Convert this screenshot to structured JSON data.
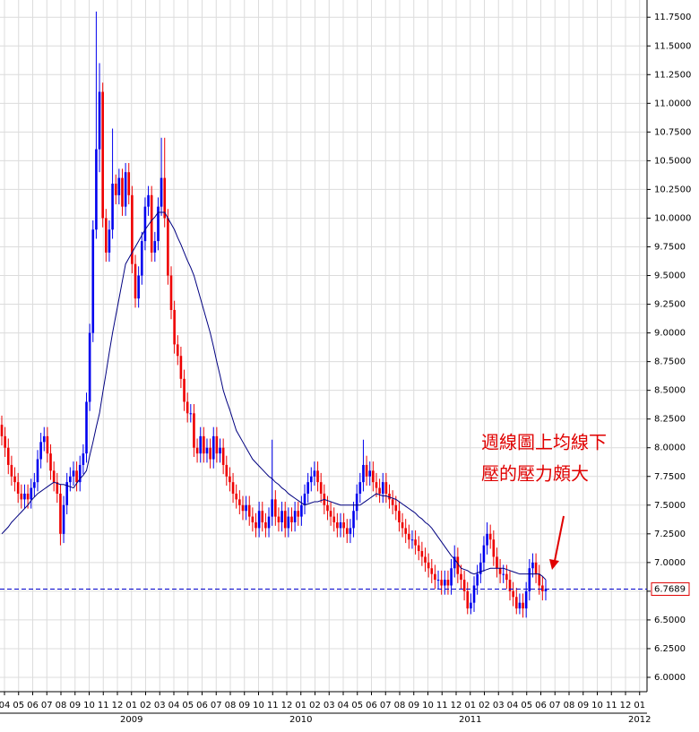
{
  "chart_data": {
    "type": "candlestick",
    "annotation": [
      "週線圖上均線下",
      "壓的壓力頗大"
    ],
    "up_color": "#0000ee",
    "down_color": "#ee0000",
    "ma_color": "#000080",
    "annotation_color": "#e00000",
    "last_price": {
      "value": 6.7689,
      "label": "6.7689"
    },
    "ylim": [
      5.875,
      11.9
    ],
    "yticks": [
      {
        "value": 6.0,
        "label": "6.0000"
      },
      {
        "value": 6.25,
        "label": "6.2500"
      },
      {
        "value": 6.5,
        "label": "6.5000"
      },
      {
        "value": 6.75,
        "label": "6.7500"
      },
      {
        "value": 7.0,
        "label": "7.0000"
      },
      {
        "value": 7.25,
        "label": "7.2500"
      },
      {
        "value": 7.5,
        "label": "7.5000"
      },
      {
        "value": 7.75,
        "label": "7.7500"
      },
      {
        "value": 8.0,
        "label": "8.0000"
      },
      {
        "value": 8.25,
        "label": "8.2500"
      },
      {
        "value": 8.5,
        "label": "8.5000"
      },
      {
        "value": 8.75,
        "label": "8.7500"
      },
      {
        "value": 9.0,
        "label": "9.0000"
      },
      {
        "value": 9.25,
        "label": "9.2500"
      },
      {
        "value": 9.5,
        "label": "9.5000"
      },
      {
        "value": 9.75,
        "label": "9.7500"
      },
      {
        "value": 10.0,
        "label": "10.0000"
      },
      {
        "value": 10.25,
        "label": "10.2500"
      },
      {
        "value": 10.5,
        "label": "10.5000"
      },
      {
        "value": 10.75,
        "label": "10.7500"
      },
      {
        "value": 11.0,
        "label": "11.0000"
      },
      {
        "value": 11.25,
        "label": "11.2500"
      },
      {
        "value": 11.5,
        "label": "11.5000"
      },
      {
        "value": 11.75,
        "label": "11.7500"
      }
    ],
    "grid": true,
    "x_labels": [
      "04",
      "05",
      "06",
      "07",
      "08",
      "09",
      "10",
      "11",
      "12",
      "01",
      "02",
      "03",
      "04",
      "05",
      "06",
      "07",
      "08",
      "09",
      "10",
      "11",
      "12",
      "01",
      "02",
      "03",
      "04",
      "05",
      "06",
      "07",
      "08",
      "09",
      "10",
      "11",
      "12",
      "01",
      "02",
      "03",
      "04",
      "05",
      "06",
      "07",
      "08",
      "09",
      "10",
      "11",
      "12",
      "01"
    ],
    "x_years": [
      null,
      null,
      null,
      null,
      null,
      null,
      null,
      null,
      null,
      "2009",
      null,
      null,
      null,
      null,
      null,
      null,
      null,
      null,
      null,
      null,
      null,
      "2010",
      null,
      null,
      null,
      null,
      null,
      null,
      null,
      null,
      null,
      null,
      null,
      "2011",
      null,
      null,
      null,
      null,
      null,
      null,
      null,
      null,
      null,
      null,
      null,
      "2012"
    ],
    "candles": [
      [
        8.2,
        8.28,
        8.02,
        8.1
      ],
      [
        8.1,
        8.18,
        7.92,
        8.0
      ],
      [
        8.0,
        8.08,
        7.77,
        7.85
      ],
      [
        7.85,
        7.93,
        7.67,
        7.75
      ],
      [
        7.75,
        7.83,
        7.62,
        7.7
      ],
      [
        7.7,
        7.78,
        7.52,
        7.6
      ],
      [
        7.6,
        7.68,
        7.47,
        7.55
      ],
      [
        7.55,
        7.68,
        7.47,
        7.6
      ],
      [
        7.6,
        7.68,
        7.47,
        7.55
      ],
      [
        7.55,
        7.73,
        7.47,
        7.65
      ],
      [
        7.65,
        7.78,
        7.57,
        7.7
      ],
      [
        7.7,
        7.98,
        7.62,
        7.9
      ],
      [
        7.9,
        8.13,
        7.82,
        8.05
      ],
      [
        8.05,
        8.18,
        7.97,
        8.1
      ],
      [
        8.1,
        8.18,
        7.87,
        7.95
      ],
      [
        7.95,
        8.03,
        7.72,
        7.8
      ],
      [
        7.8,
        7.88,
        7.62,
        7.7
      ],
      [
        7.7,
        7.78,
        7.52,
        7.6
      ],
      [
        7.6,
        7.68,
        7.15,
        7.25
      ],
      [
        7.25,
        7.58,
        7.17,
        7.5
      ],
      [
        7.5,
        7.78,
        7.42,
        7.7
      ],
      [
        7.7,
        7.83,
        7.62,
        7.75
      ],
      [
        7.75,
        7.88,
        7.67,
        7.8
      ],
      [
        7.8,
        7.88,
        7.62,
        7.7
      ],
      [
        7.7,
        7.93,
        7.62,
        7.85
      ],
      [
        7.85,
        8.03,
        7.77,
        7.95
      ],
      [
        7.95,
        8.48,
        7.87,
        8.4
      ],
      [
        8.4,
        9.08,
        8.32,
        9.0
      ],
      [
        9.0,
        9.98,
        8.92,
        9.9
      ],
      [
        9.9,
        11.8,
        9.82,
        10.6
      ],
      [
        10.6,
        11.35,
        10.4,
        11.1
      ],
      [
        11.1,
        11.18,
        9.92,
        10.0
      ],
      [
        10.0,
        10.08,
        9.62,
        9.7
      ],
      [
        9.7,
        9.98,
        9.62,
        9.9
      ],
      [
        9.9,
        10.78,
        9.82,
        10.3
      ],
      [
        10.3,
        10.38,
        10.12,
        10.2
      ],
      [
        10.2,
        10.43,
        10.12,
        10.35
      ],
      [
        10.35,
        10.43,
        10.02,
        10.1
      ],
      [
        10.1,
        10.48,
        10.02,
        10.4
      ],
      [
        10.4,
        10.48,
        10.12,
        10.2
      ],
      [
        10.2,
        10.28,
        9.52,
        9.6
      ],
      [
        9.6,
        9.68,
        9.22,
        9.3
      ],
      [
        9.3,
        9.58,
        9.22,
        9.5
      ],
      [
        9.5,
        9.88,
        9.42,
        9.8
      ],
      [
        9.8,
        10.18,
        9.72,
        10.1
      ],
      [
        10.1,
        10.28,
        10.02,
        10.2
      ],
      [
        10.2,
        10.28,
        9.62,
        9.7
      ],
      [
        9.7,
        9.88,
        9.62,
        9.8
      ],
      [
        9.8,
        10.18,
        9.72,
        10.1
      ],
      [
        10.1,
        10.7,
        10.02,
        10.35
      ],
      [
        10.35,
        10.7,
        9.92,
        10.0
      ],
      [
        10.0,
        10.08,
        9.42,
        9.5
      ],
      [
        9.5,
        9.58,
        9.12,
        9.2
      ],
      [
        9.2,
        9.28,
        8.82,
        8.9
      ],
      [
        8.9,
        8.98,
        8.72,
        8.8
      ],
      [
        8.8,
        8.88,
        8.52,
        8.6
      ],
      [
        8.6,
        8.68,
        8.32,
        8.4
      ],
      [
        8.4,
        8.48,
        8.22,
        8.3
      ],
      [
        8.3,
        8.38,
        8.22,
        8.3
      ],
      [
        8.3,
        8.38,
        7.92,
        8.0
      ],
      [
        8.0,
        8.08,
        7.87,
        7.95
      ],
      [
        7.95,
        8.18,
        7.87,
        8.1
      ],
      [
        8.1,
        8.18,
        7.87,
        7.95
      ],
      [
        7.95,
        8.08,
        7.87,
        8.0
      ],
      [
        8.0,
        8.08,
        7.82,
        7.9
      ],
      [
        7.9,
        8.18,
        7.82,
        8.1
      ],
      [
        8.1,
        8.18,
        7.87,
        7.95
      ],
      [
        7.95,
        8.08,
        7.87,
        8.0
      ],
      [
        8.0,
        8.08,
        7.77,
        7.85
      ],
      [
        7.85,
        7.93,
        7.67,
        7.75
      ],
      [
        7.75,
        7.83,
        7.62,
        7.7
      ],
      [
        7.7,
        7.78,
        7.52,
        7.6
      ],
      [
        7.6,
        7.68,
        7.47,
        7.55
      ],
      [
        7.55,
        7.63,
        7.42,
        7.5
      ],
      [
        7.5,
        7.58,
        7.37,
        7.45
      ],
      [
        7.45,
        7.58,
        7.37,
        7.5
      ],
      [
        7.5,
        7.58,
        7.32,
        7.4
      ],
      [
        7.4,
        7.48,
        7.27,
        7.35
      ],
      [
        7.35,
        7.43,
        7.22,
        7.3
      ],
      [
        7.3,
        7.53,
        7.22,
        7.45
      ],
      [
        7.45,
        7.53,
        7.27,
        7.35
      ],
      [
        7.35,
        7.43,
        7.22,
        7.3
      ],
      [
        7.3,
        7.48,
        7.22,
        7.4
      ],
      [
        7.4,
        8.07,
        7.32,
        7.55
      ],
      [
        7.55,
        7.63,
        7.32,
        7.4
      ],
      [
        7.4,
        7.48,
        7.27,
        7.35
      ],
      [
        7.35,
        7.53,
        7.27,
        7.45
      ],
      [
        7.45,
        7.53,
        7.22,
        7.3
      ],
      [
        7.3,
        7.48,
        7.22,
        7.4
      ],
      [
        7.4,
        7.48,
        7.27,
        7.35
      ],
      [
        7.35,
        7.53,
        7.27,
        7.45
      ],
      [
        7.45,
        7.53,
        7.32,
        7.4
      ],
      [
        7.4,
        7.58,
        7.32,
        7.5
      ],
      [
        7.5,
        7.68,
        7.42,
        7.6
      ],
      [
        7.6,
        7.78,
        7.52,
        7.7
      ],
      [
        7.7,
        7.83,
        7.62,
        7.75
      ],
      [
        7.75,
        7.88,
        7.67,
        7.8
      ],
      [
        7.8,
        7.88,
        7.62,
        7.7
      ],
      [
        7.7,
        7.78,
        7.52,
        7.6
      ],
      [
        7.6,
        7.68,
        7.42,
        7.5
      ],
      [
        7.5,
        7.58,
        7.37,
        7.45
      ],
      [
        7.45,
        7.53,
        7.32,
        7.4
      ],
      [
        7.4,
        7.48,
        7.27,
        7.35
      ],
      [
        7.35,
        7.43,
        7.22,
        7.3
      ],
      [
        7.3,
        7.43,
        7.22,
        7.35
      ],
      [
        7.35,
        7.43,
        7.22,
        7.3
      ],
      [
        7.3,
        7.38,
        7.17,
        7.25
      ],
      [
        7.25,
        7.38,
        7.17,
        7.3
      ],
      [
        7.3,
        7.53,
        7.22,
        7.45
      ],
      [
        7.45,
        7.68,
        7.37,
        7.6
      ],
      [
        7.6,
        7.78,
        7.52,
        7.7
      ],
      [
        7.7,
        8.07,
        7.62,
        7.85
      ],
      [
        7.85,
        7.93,
        7.67,
        7.75
      ],
      [
        7.75,
        7.88,
        7.67,
        7.8
      ],
      [
        7.8,
        7.88,
        7.62,
        7.7
      ],
      [
        7.7,
        7.78,
        7.57,
        7.65
      ],
      [
        7.65,
        7.73,
        7.52,
        7.6
      ],
      [
        7.6,
        7.78,
        7.52,
        7.7
      ],
      [
        7.7,
        7.78,
        7.52,
        7.6
      ],
      [
        7.6,
        7.68,
        7.47,
        7.55
      ],
      [
        7.55,
        7.63,
        7.42,
        7.5
      ],
      [
        7.5,
        7.58,
        7.37,
        7.45
      ],
      [
        7.45,
        7.53,
        7.27,
        7.35
      ],
      [
        7.35,
        7.43,
        7.22,
        7.3
      ],
      [
        7.3,
        7.38,
        7.17,
        7.25
      ],
      [
        7.25,
        7.33,
        7.12,
        7.2
      ],
      [
        7.2,
        7.28,
        7.12,
        7.2
      ],
      [
        7.2,
        7.28,
        7.07,
        7.15
      ],
      [
        7.15,
        7.23,
        7.02,
        7.1
      ],
      [
        7.1,
        7.18,
        6.97,
        7.05
      ],
      [
        7.05,
        7.13,
        6.92,
        7.0
      ],
      [
        7.0,
        7.08,
        6.87,
        6.95
      ],
      [
        6.95,
        7.03,
        6.82,
        6.9
      ],
      [
        6.9,
        6.98,
        6.77,
        6.85
      ],
      [
        6.85,
        6.93,
        6.77,
        6.85
      ],
      [
        6.85,
        6.93,
        6.72,
        6.8
      ],
      [
        6.8,
        6.93,
        6.72,
        6.85
      ],
      [
        6.85,
        6.93,
        6.72,
        6.8
      ],
      [
        6.8,
        7.03,
        6.72,
        6.95
      ],
      [
        6.95,
        7.15,
        6.87,
        7.05
      ],
      [
        7.05,
        7.13,
        6.82,
        6.9
      ],
      [
        6.9,
        6.98,
        6.77,
        6.85
      ],
      [
        6.85,
        6.93,
        6.67,
        6.75
      ],
      [
        6.75,
        6.83,
        6.55,
        6.6
      ],
      [
        6.6,
        6.73,
        6.55,
        6.65
      ],
      [
        6.65,
        6.88,
        6.57,
        6.8
      ],
      [
        6.8,
        6.98,
        6.72,
        6.9
      ],
      [
        6.9,
        7.08,
        6.82,
        7.0
      ],
      [
        7.0,
        7.23,
        6.92,
        7.15
      ],
      [
        7.15,
        7.35,
        7.07,
        7.25
      ],
      [
        7.25,
        7.33,
        7.12,
        7.2
      ],
      [
        7.2,
        7.28,
        6.97,
        7.05
      ],
      [
        7.05,
        7.13,
        6.87,
        6.95
      ],
      [
        6.95,
        7.03,
        6.82,
        6.9
      ],
      [
        6.9,
        6.98,
        6.82,
        6.9
      ],
      [
        6.9,
        6.98,
        6.77,
        6.85
      ],
      [
        6.85,
        6.93,
        6.67,
        6.75
      ],
      [
        6.75,
        6.83,
        6.62,
        6.7
      ],
      [
        6.7,
        6.78,
        6.55,
        6.6
      ],
      [
        6.6,
        6.73,
        6.55,
        6.65
      ],
      [
        6.65,
        6.73,
        6.52,
        6.6
      ],
      [
        6.6,
        6.83,
        6.52,
        6.75
      ],
      [
        6.75,
        7.03,
        6.67,
        6.95
      ],
      [
        6.95,
        7.08,
        6.87,
        7.0
      ],
      [
        7.0,
        7.08,
        6.82,
        6.9
      ],
      [
        6.9,
        6.98,
        6.72,
        6.8
      ],
      [
        6.8,
        6.88,
        6.67,
        6.75
      ],
      [
        6.75,
        6.85,
        6.67,
        6.77
      ]
    ],
    "ma": [
      7.25,
      7.28,
      7.31,
      7.35,
      7.38,
      7.41,
      7.44,
      7.47,
      7.5,
      7.54,
      7.57,
      7.6,
      7.62,
      7.64,
      7.66,
      7.68,
      7.7,
      7.69,
      7.68,
      7.68,
      7.67,
      7.66,
      7.65,
      7.69,
      7.73,
      7.76,
      7.8,
      7.93,
      8.05,
      8.18,
      8.3,
      8.48,
      8.65,
      8.83,
      9.0,
      9.15,
      9.3,
      9.45,
      9.6,
      9.65,
      9.7,
      9.75,
      9.8,
      9.85,
      9.9,
      9.94,
      9.98,
      10.01,
      10.05,
      10.05,
      10.05,
      10.0,
      9.95,
      9.9,
      9.83,
      9.77,
      9.7,
      9.63,
      9.57,
      9.5,
      9.4,
      9.3,
      9.2,
      9.1,
      9.0,
      8.88,
      8.75,
      8.63,
      8.5,
      8.41,
      8.33,
      8.24,
      8.15,
      8.1,
      8.05,
      8.0,
      7.95,
      7.9,
      7.87,
      7.84,
      7.81,
      7.78,
      7.75,
      7.73,
      7.7,
      7.68,
      7.65,
      7.63,
      7.6,
      7.58,
      7.56,
      7.54,
      7.52,
      7.5,
      7.51,
      7.52,
      7.53,
      7.53,
      7.54,
      7.55,
      7.54,
      7.53,
      7.52,
      7.51,
      7.5,
      7.5,
      7.5,
      7.5,
      7.5,
      7.5,
      7.5,
      7.52,
      7.54,
      7.56,
      7.58,
      7.6,
      7.59,
      7.58,
      7.58,
      7.57,
      7.56,
      7.55,
      7.53,
      7.51,
      7.49,
      7.47,
      7.45,
      7.43,
      7.4,
      7.38,
      7.35,
      7.33,
      7.3,
      7.26,
      7.22,
      7.18,
      7.14,
      7.1,
      7.06,
      7.03,
      6.99,
      6.95,
      6.94,
      6.93,
      6.91,
      6.9,
      6.91,
      6.92,
      6.93,
      6.94,
      6.95,
      6.95,
      6.95,
      6.95,
      6.95,
      6.94,
      6.93,
      6.92,
      6.91,
      6.9,
      6.9,
      6.9,
      6.9,
      6.9,
      6.9,
      6.9,
      6.88,
      6.85
    ]
  }
}
